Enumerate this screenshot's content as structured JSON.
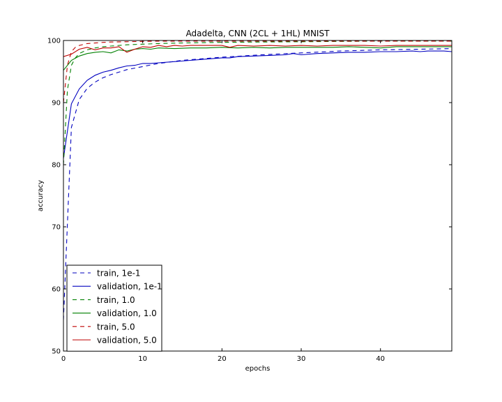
{
  "chart_data": {
    "type": "line",
    "title": "Adadelta, CNN (2CL + 1HL) MNIST",
    "xlabel": "epochs",
    "ylabel": "accuracy",
    "xlim": [
      0,
      49
    ],
    "ylim": [
      50,
      100
    ],
    "xticks": [
      0,
      10,
      20,
      30,
      40
    ],
    "yticks": [
      50,
      60,
      70,
      80,
      90,
      100
    ],
    "grid": false,
    "legend_position": "lower-left",
    "series": [
      {
        "name": "train, 1e-1",
        "color": "#0000bf",
        "style": "dashed",
        "x": [
          0,
          1,
          2,
          3,
          4,
          5,
          6,
          8,
          10,
          12,
          15,
          20,
          25,
          30,
          35,
          40,
          45,
          49
        ],
        "y": [
          55,
          86,
          90.5,
          92.3,
          93.3,
          94,
          94.5,
          95.3,
          95.8,
          96.3,
          96.8,
          97.3,
          97.7,
          98,
          98.3,
          98.5,
          98.6,
          98.7
        ]
      },
      {
        "name": "validation, 1e-1",
        "color": "#0000bf",
        "style": "solid",
        "x": [
          0,
          1,
          2,
          3,
          4,
          5,
          6,
          7,
          8,
          9,
          10,
          11,
          12,
          14,
          16,
          18,
          20,
          21,
          22,
          24,
          26,
          28,
          29,
          30,
          32,
          34,
          36,
          38,
          40,
          42,
          44,
          45,
          46,
          48,
          49
        ],
        "y": [
          81,
          89.8,
          92.2,
          93.6,
          94.4,
          94.9,
          95.2,
          95.6,
          95.9,
          96,
          96.3,
          96.3,
          96.4,
          96.6,
          96.8,
          97,
          97.2,
          97.2,
          97.4,
          97.5,
          97.6,
          97.7,
          97.9,
          97.7,
          97.9,
          98,
          98.1,
          98.1,
          98.2,
          98.2,
          98.3,
          98.2,
          98.3,
          98.3,
          98.2
        ]
      },
      {
        "name": "train, 1.0",
        "color": "#008000",
        "style": "dashed",
        "x": [
          0,
          0.5,
          1,
          1.5,
          2,
          3,
          4,
          5,
          6,
          8,
          10,
          12,
          15,
          20,
          25,
          30,
          35,
          40,
          45,
          49
        ],
        "y": [
          80,
          92,
          96,
          97.2,
          97.9,
          98.5,
          98.8,
          99.0,
          99.1,
          99.3,
          99.4,
          99.5,
          99.6,
          99.7,
          99.75,
          99.8,
          99.85,
          99.9,
          99.9,
          99.9
        ]
      },
      {
        "name": "validation, 1.0",
        "color": "#008000",
        "style": "solid",
        "x": [
          0,
          1,
          2,
          3,
          4,
          5,
          6,
          7,
          8,
          9,
          10,
          11,
          12,
          14,
          16,
          18,
          20,
          22,
          24,
          26,
          28,
          30,
          32,
          34,
          36,
          38,
          40,
          42,
          44,
          46,
          48,
          49
        ],
        "y": [
          95.2,
          96.8,
          97.5,
          97.9,
          98.1,
          98.2,
          98.0,
          98.5,
          98.3,
          98.6,
          98.7,
          98.6,
          98.8,
          98.7,
          98.8,
          98.8,
          98.9,
          98.8,
          98.9,
          98.8,
          98.9,
          98.9,
          98.9,
          98.9,
          99.0,
          98.9,
          98.8,
          99.0,
          99.0,
          99.0,
          99.0,
          99.0
        ]
      },
      {
        "name": "train, 5.0",
        "color": "#bf0000",
        "style": "dashed",
        "x": [
          0,
          0.5,
          1,
          1.5,
          2,
          3,
          4,
          5,
          6,
          8,
          10,
          12,
          15,
          20,
          25,
          30,
          35,
          40,
          45,
          49
        ],
        "y": [
          90,
          96,
          98.2,
          98.9,
          99.2,
          99.5,
          99.6,
          99.7,
          99.75,
          99.8,
          99.85,
          99.9,
          99.9,
          99.9,
          99.9,
          99.9,
          99.9,
          99.9,
          99.9,
          99.9
        ]
      },
      {
        "name": "validation, 5.0",
        "color": "#bf0000",
        "style": "solid",
        "x": [
          0,
          1,
          2,
          3,
          4,
          5,
          6,
          7,
          8,
          9,
          10,
          11,
          12,
          13,
          14,
          15,
          16,
          18,
          20,
          21,
          22,
          24,
          26,
          28,
          30,
          32,
          34,
          36,
          38,
          40,
          42,
          44,
          46,
          48,
          49
        ],
        "y": [
          97.4,
          97.8,
          98.6,
          98.9,
          98.5,
          98.8,
          98.8,
          99.0,
          98.1,
          98.6,
          99.0,
          98.9,
          99.2,
          99.0,
          99.2,
          99.1,
          99.2,
          99.2,
          99.2,
          98.9,
          99.2,
          99.1,
          99.2,
          99.1,
          99.2,
          99.1,
          99.2,
          99.2,
          99.2,
          99.1,
          99.2,
          99.2,
          99.2,
          99.2,
          99.2
        ]
      }
    ]
  }
}
